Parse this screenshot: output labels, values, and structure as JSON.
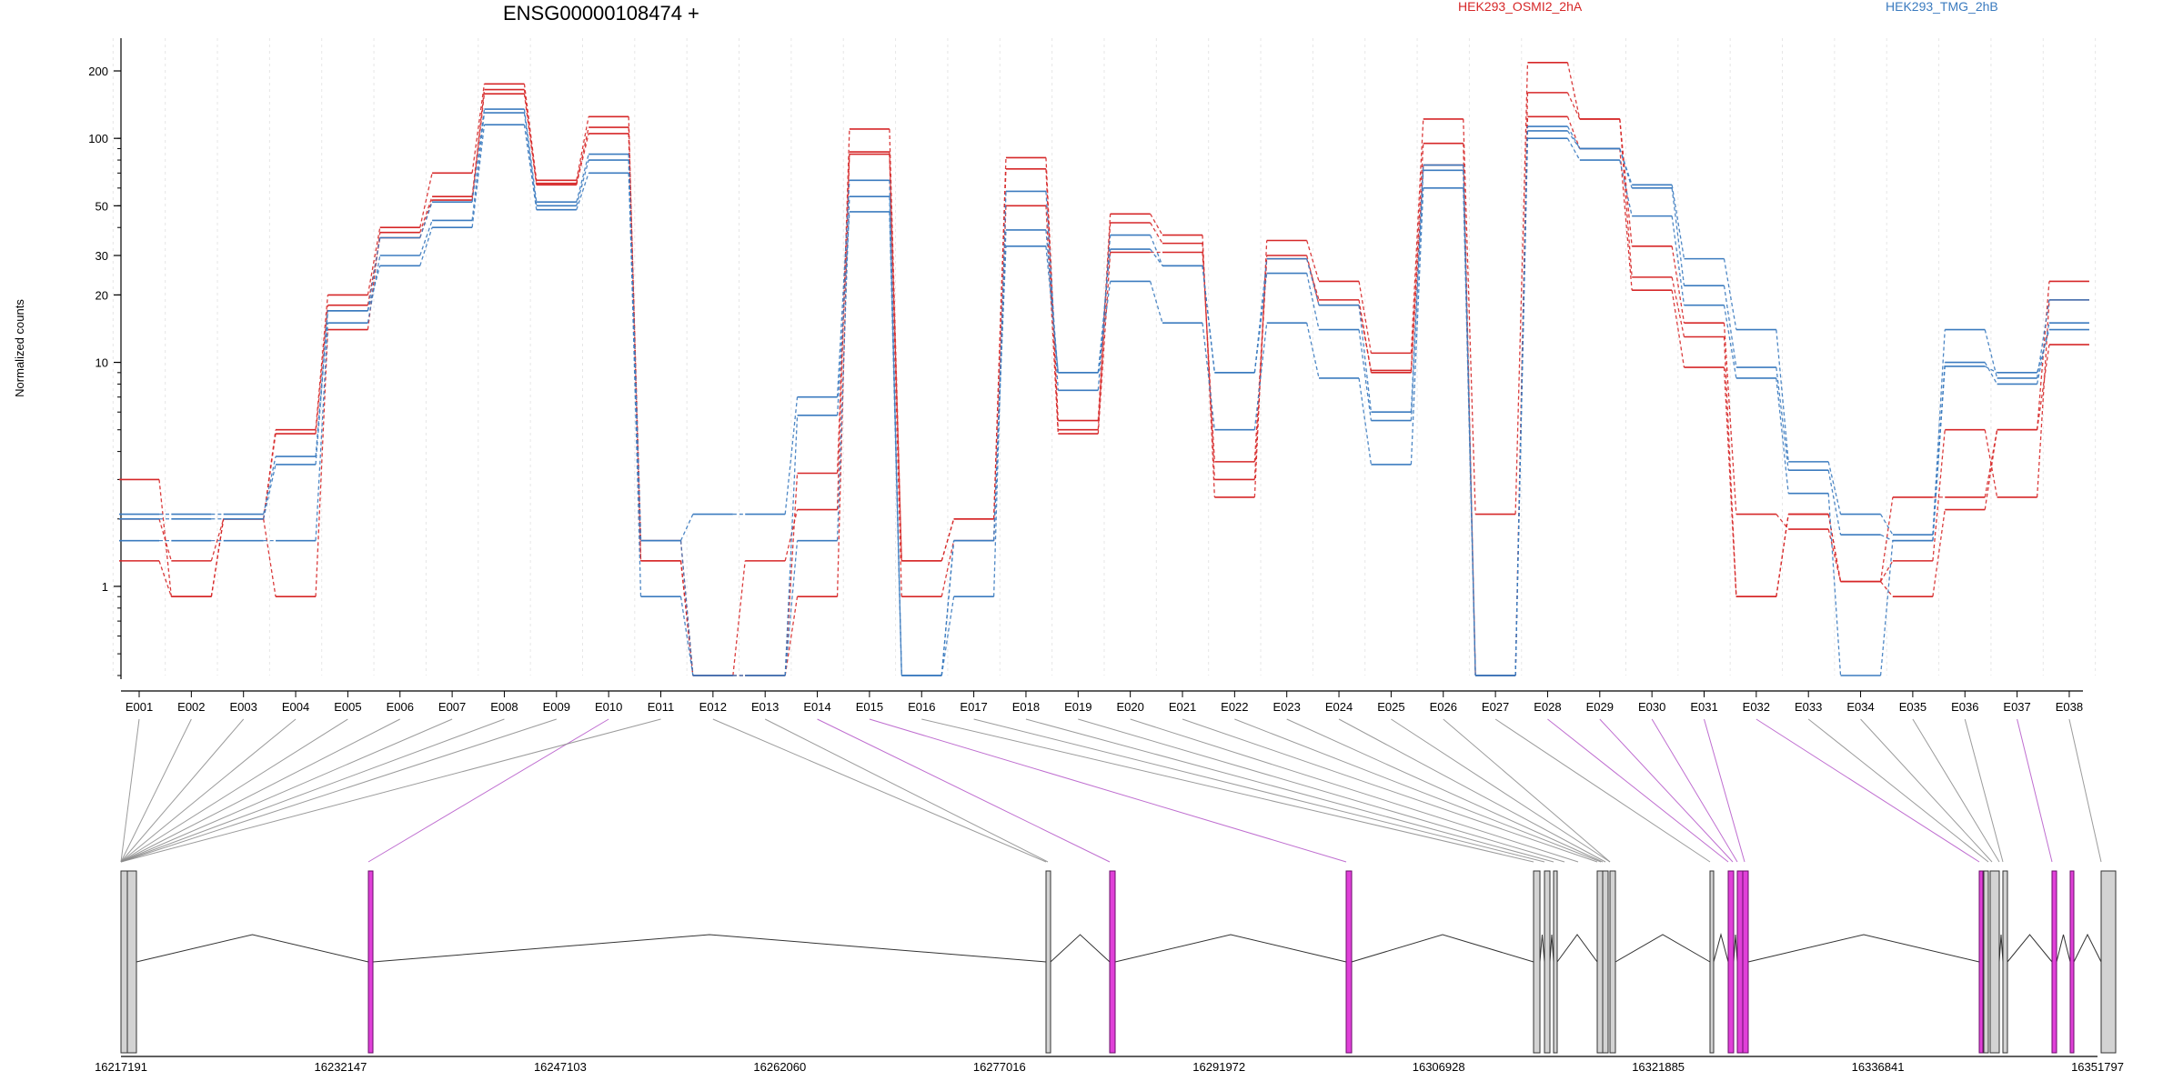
{
  "chart_data": {
    "type": "line",
    "title": "ENSG00000108474 +",
    "ylabel": "Normalized counts",
    "yscale": "log",
    "ylim": [
      0.4,
      280
    ],
    "yticks": [
      1,
      10,
      20,
      30,
      50,
      100,
      200
    ],
    "categories": [
      "E001",
      "E002",
      "E003",
      "E004",
      "E005",
      "E006",
      "E007",
      "E008",
      "E009",
      "E010",
      "E011",
      "E012",
      "E013",
      "E014",
      "E015",
      "E016",
      "E017",
      "E018",
      "E019",
      "E020",
      "E021",
      "E022",
      "E023",
      "E024",
      "E025",
      "E026",
      "E027",
      "E028",
      "E029",
      "E030",
      "E031",
      "E032",
      "E033",
      "E034",
      "E035",
      "E036",
      "E037",
      "E038"
    ],
    "legend": [
      {
        "label": "HEK293_OSMI2_2hA",
        "color": "#d62728"
      },
      {
        "label": "HEK293_TMG_2hB",
        "color": "#3b7bbf"
      }
    ],
    "series": [
      {
        "group": "HEK293_OSMI2_2hA",
        "color": "#d62728",
        "values": [
          3.0,
          0.9,
          2.0,
          5.0,
          20,
          40,
          70,
          175,
          65,
          125,
          1.3,
          0.4,
          1.3,
          2.2,
          110,
          1.3,
          2.0,
          82,
          5.5,
          46,
          37,
          2.5,
          35,
          23,
          11,
          122,
          2.1,
          218,
          122,
          33,
          15,
          2.1,
          1.8,
          1.05,
          2.5,
          2.5,
          5.0,
          23
        ]
      },
      {
        "group": "HEK293_OSMI2_2hA",
        "color": "#d62728",
        "values": [
          1.3,
          0.9,
          2.0,
          0.9,
          14,
          38,
          55,
          165,
          63,
          112,
          1.6,
          0.4,
          0.4,
          0.9,
          87,
          1.3,
          2.0,
          73,
          5.0,
          42,
          34,
          3.0,
          30,
          18,
          9.2,
          95,
          0.4,
          160,
          122,
          24,
          13,
          0.9,
          2.1,
          1.05,
          0.9,
          2.2,
          5.0,
          12
        ]
      },
      {
        "group": "HEK293_OSMI2_2hA",
        "color": "#d62728",
        "values": [
          2.0,
          1.3,
          2.0,
          4.8,
          18,
          36,
          53,
          158,
          62,
          105,
          1.3,
          0.4,
          0.4,
          3.2,
          85,
          0.9,
          1.6,
          50,
          4.8,
          31,
          31,
          3.6,
          29,
          19,
          9.0,
          76,
          0.4,
          125,
          90,
          21,
          9.5,
          0.9,
          2.1,
          1.05,
          1.3,
          5.0,
          2.5,
          19
        ]
      },
      {
        "group": "HEK293_TMG_2hB",
        "color": "#3b7bbf",
        "values": [
          2.1,
          2.1,
          2.1,
          3.8,
          17,
          36,
          52,
          135,
          52,
          85,
          1.6,
          2.1,
          2.1,
          7.0,
          65,
          0.4,
          0.9,
          58,
          7.5,
          37,
          27,
          9.0,
          29,
          18,
          6.0,
          76,
          0.4,
          113,
          90,
          62,
          29,
          14,
          3.6,
          2.1,
          1.7,
          14,
          8.5,
          19
        ]
      },
      {
        "group": "HEK293_TMG_2hB",
        "color": "#3b7bbf",
        "values": [
          1.6,
          1.6,
          1.6,
          1.6,
          15,
          30,
          43,
          130,
          50,
          80,
          0.9,
          0.4,
          0.4,
          1.6,
          55,
          0.4,
          1.6,
          39,
          9.0,
          32,
          27,
          9.0,
          25,
          14,
          5.5,
          72,
          0.4,
          108,
          90,
          60,
          22,
          9.5,
          3.3,
          1.7,
          1.6,
          10,
          8.0,
          15
        ]
      },
      {
        "group": "HEK293_TMG_2hB",
        "color": "#3b7bbf",
        "values": [
          2.0,
          2.0,
          2.0,
          3.5,
          17,
          27,
          40,
          115,
          48,
          70,
          1.6,
          0.4,
          0.4,
          5.8,
          47,
          0.4,
          1.6,
          33,
          9.0,
          23,
          15,
          5.0,
          15,
          8.5,
          3.5,
          60,
          0.4,
          100,
          80,
          45,
          18,
          8.5,
          2.6,
          0.4,
          1.6,
          9.6,
          9.0,
          14
        ]
      }
    ]
  },
  "gene_model": {
    "coordinates": [
      "16217191",
      "16232147",
      "16247103",
      "16262060",
      "16277016",
      "16291972",
      "16306928",
      "16321885",
      "16336841",
      "16351797"
    ]
  },
  "colors": {
    "exon": "#d3d3d3",
    "exon_highlight": "#e040d8",
    "connector": "#8a8a8a",
    "connector_highlight": "#b455c8"
  }
}
